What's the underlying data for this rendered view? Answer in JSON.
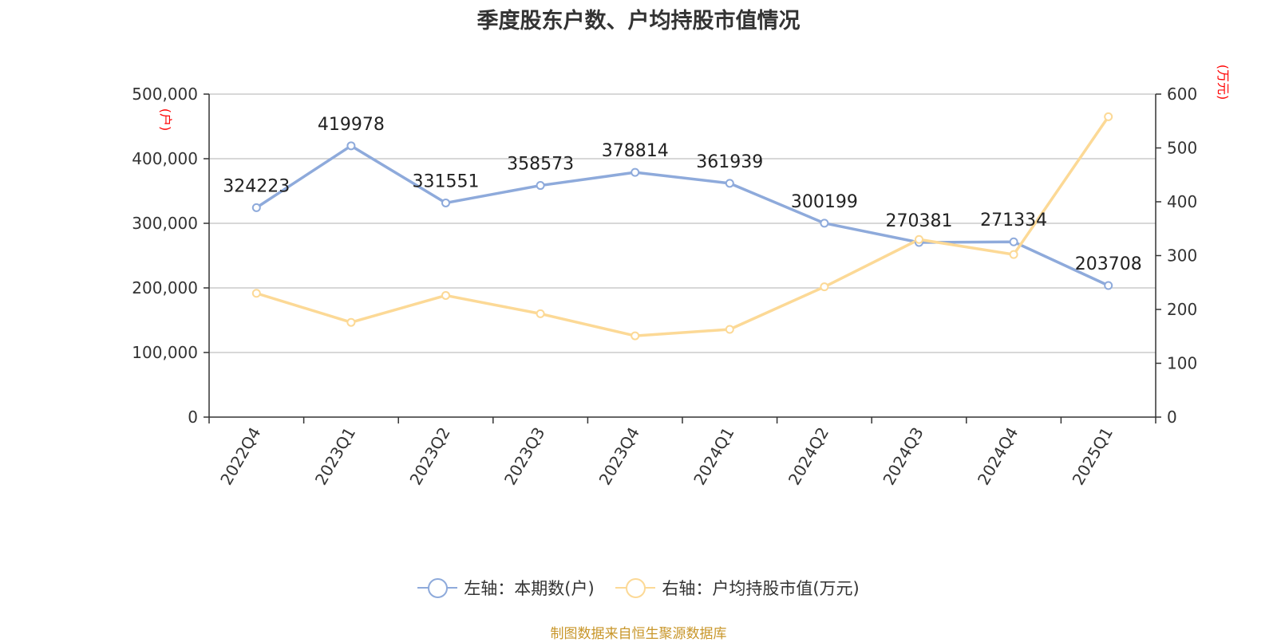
{
  "chart_data": {
    "type": "line",
    "title": "季度股东户数、户均持股市值情况",
    "categories": [
      "2022Q4",
      "2023Q1",
      "2023Q2",
      "2023Q3",
      "2023Q4",
      "2024Q1",
      "2024Q2",
      "2024Q3",
      "2024Q4",
      "2025Q1"
    ],
    "left_axis": {
      "label": "(户)",
      "ylim": [
        0,
        500000
      ],
      "ticks": [
        "0",
        "100,000",
        "200,000",
        "300,000",
        "400,000",
        "500,000"
      ]
    },
    "right_axis": {
      "label": "(万元)",
      "ylim": [
        0,
        600
      ],
      "ticks": [
        "0",
        "100",
        "200",
        "300",
        "400",
        "500",
        "600"
      ]
    },
    "series": [
      {
        "name": "左轴：本期数(户)",
        "axis": "left",
        "color": "#8eaadb",
        "values": [
          324223,
          419978,
          331551,
          358573,
          378814,
          361939,
          300199,
          270381,
          271334,
          203708
        ],
        "labels": [
          "324223",
          "419978",
          "331551",
          "358573",
          "378814",
          "361939",
          "300199",
          "270381",
          "271334",
          "203708"
        ]
      },
      {
        "name": "右轴：户均持股市值(万元)",
        "axis": "right",
        "color": "#fcd996",
        "values": [
          230,
          176,
          226,
          192,
          151,
          163,
          242,
          330,
          302,
          558
        ]
      }
    ],
    "grid": true,
    "legend_position": "bottom"
  },
  "footer": {
    "source": "制图数据来自恒生聚源数据库"
  },
  "colors": {
    "axis_label": "#ff0000",
    "grid": "#cccccc",
    "source": "#c8962a"
  }
}
